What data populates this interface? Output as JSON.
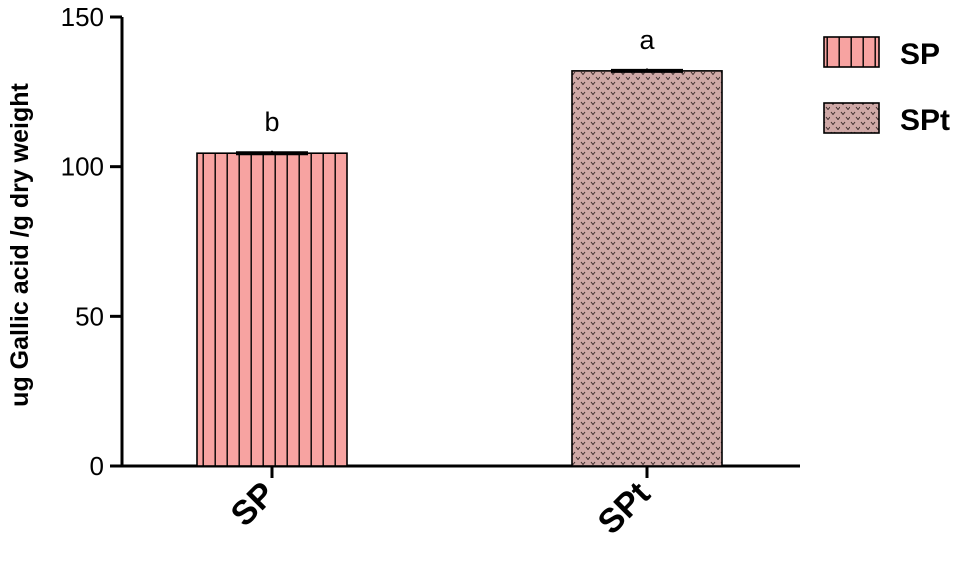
{
  "chart_data": {
    "type": "bar",
    "title": "",
    "xlabel": "",
    "ylabel": "ug Gallic acid /g dry weight",
    "ylim": [
      0,
      150
    ],
    "yticks": [
      0,
      50,
      100,
      150
    ],
    "grid": false,
    "legend_position": "top-right",
    "categories": [
      "SP",
      "SPt"
    ],
    "values": [
      104.5,
      132
    ],
    "errors": [
      0.8,
      0.8
    ],
    "significance": [
      "b",
      "a"
    ],
    "legend": [
      "SP",
      "SPt"
    ],
    "patterns": [
      "vertical-stripes",
      "dotted-chevrons"
    ],
    "colors": {
      "bar_fill": "#f7a3a1",
      "bar_stroke": "#000000",
      "spt_fill": "#cfa9a7",
      "spt_dots": "#3a2a2a"
    }
  }
}
